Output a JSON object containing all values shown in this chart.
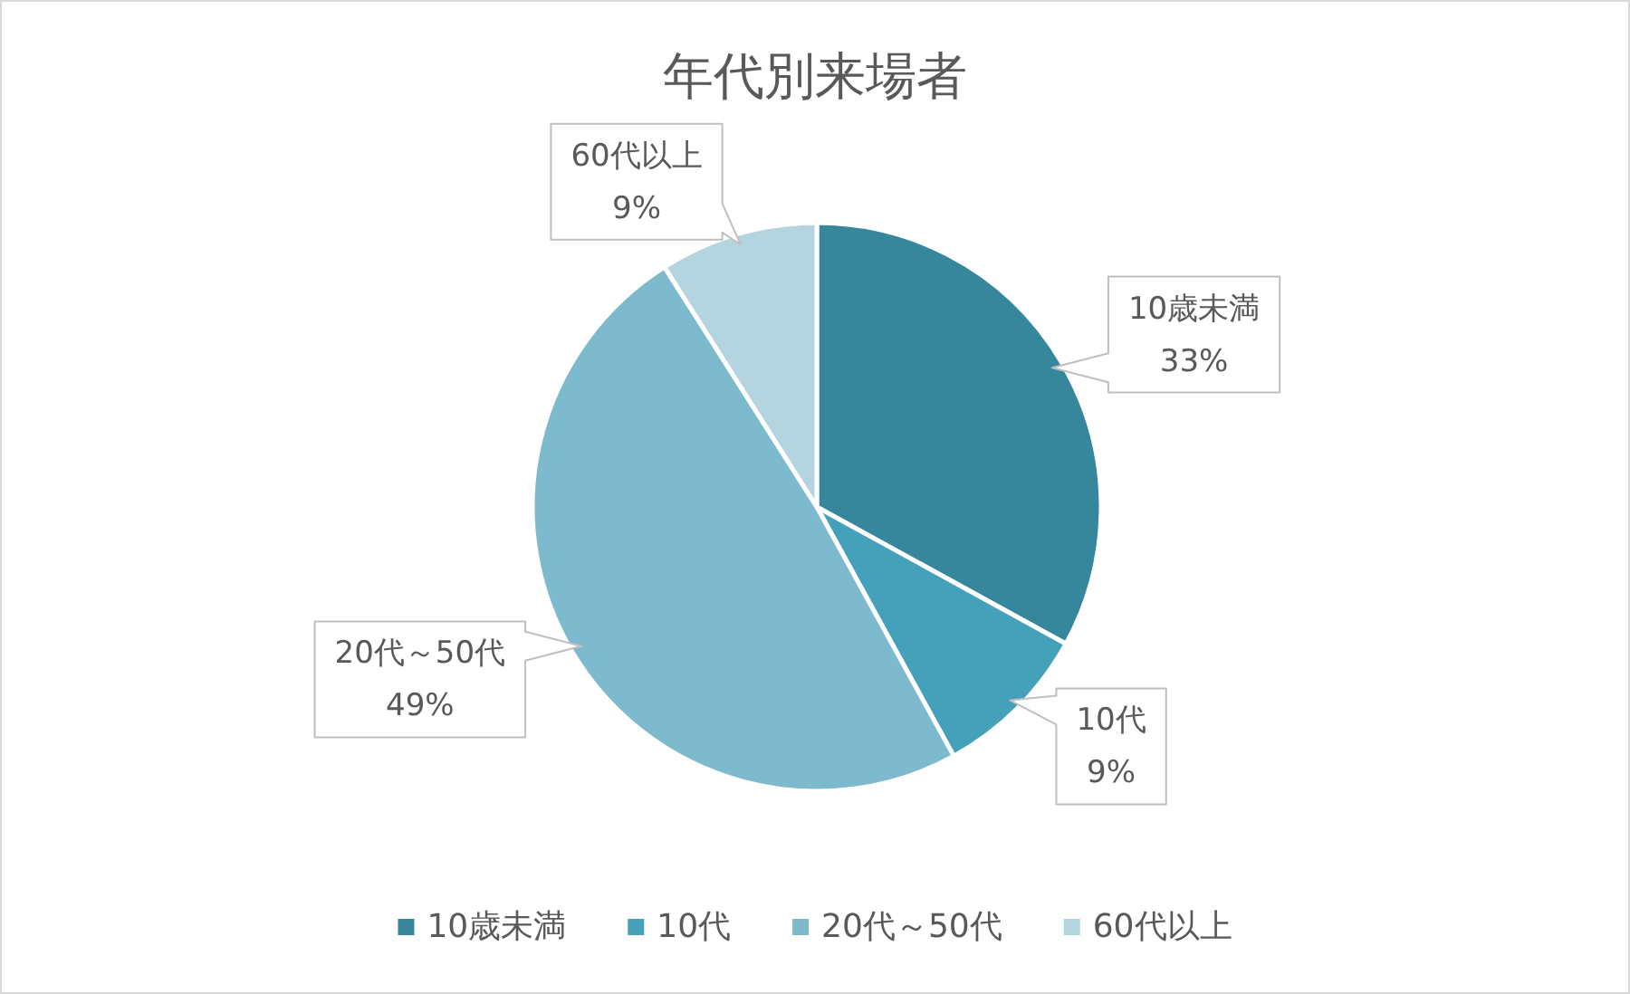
{
  "chart_data": {
    "type": "pie",
    "title": "年代別来場者",
    "categories": [
      "10歳未満",
      "10代",
      "20代～50代",
      "60代以上"
    ],
    "values": [
      33,
      9,
      49,
      9
    ],
    "value_labels": [
      "33%",
      "9%",
      "49%",
      "9%"
    ],
    "colors": [
      "#37879c",
      "#45a1ba",
      "#7dbacd",
      "#b4d5e0"
    ],
    "legend": "bottom"
  }
}
